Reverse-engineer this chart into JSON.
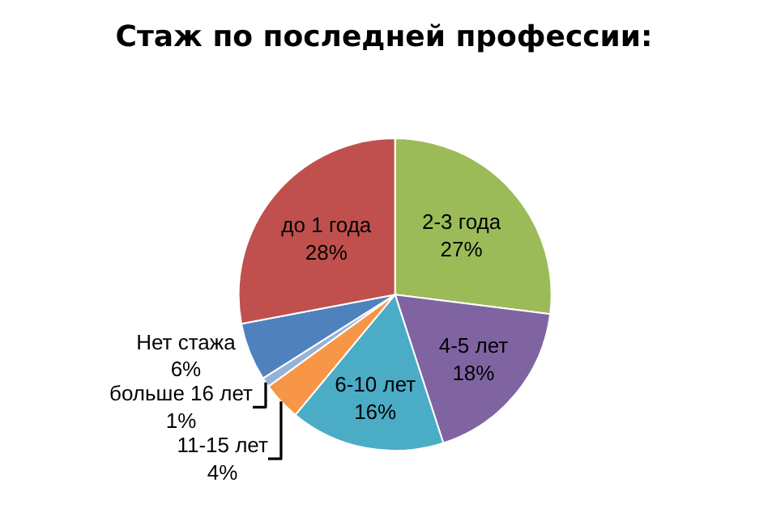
{
  "chart_data": {
    "type": "pie",
    "title": "Стаж по последней профессии:",
    "categories": [
      "2-3 года",
      "4-5 лет",
      "6-10 лет",
      "11-15 лет",
      "больше 16 лет",
      "Нет стажа",
      "до 1 года"
    ],
    "values": [
      27,
      18,
      16,
      4,
      1,
      6,
      28
    ],
    "value_labels": [
      "27%",
      "18%",
      "16%",
      "4%",
      "1%",
      "6%",
      "28%"
    ],
    "colors": [
      "#9bbb59",
      "#8064a2",
      "#4bacc6",
      "#f79646",
      "#95b3d7",
      "#4f81bd",
      "#c0504d"
    ],
    "legend": false
  }
}
